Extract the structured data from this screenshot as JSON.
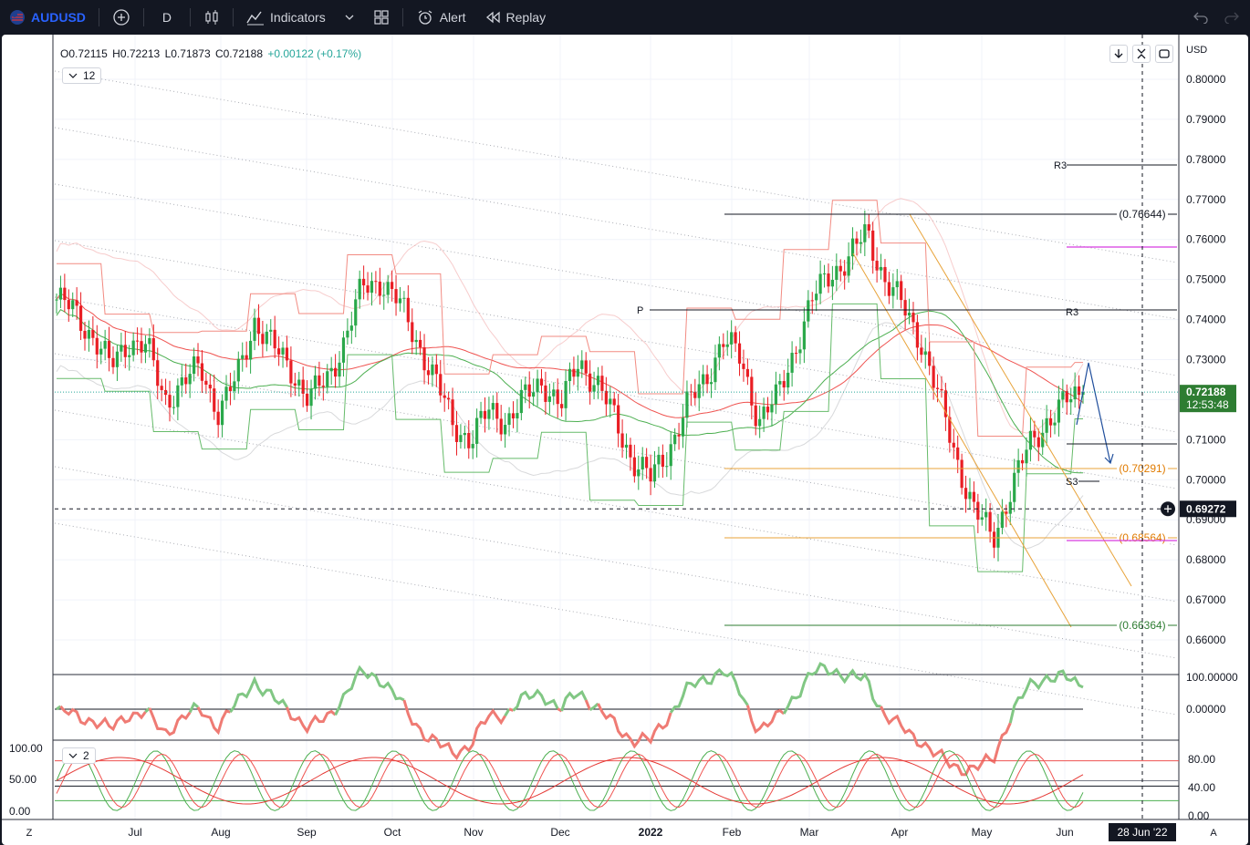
{
  "toolbar": {
    "symbol": "AUDUSD",
    "interval": "D",
    "indicators_label": "Indicators",
    "alert_label": "Alert",
    "replay_label": "Replay"
  },
  "legend": {
    "open": "O0.72115",
    "high": "H0.72213",
    "low": "L0.71873",
    "close": "C0.72188",
    "change": "+0.00122 (+0.17%)",
    "pane1_count": "12",
    "pane3_count": "2"
  },
  "price_axis": {
    "currency": "USD",
    "ticks": [
      "0.80000",
      "0.79000",
      "0.78000",
      "0.77000",
      "0.76000",
      "0.75000",
      "0.74000",
      "0.73000",
      "0.72000",
      "0.71000",
      "0.70000",
      "0.69000",
      "0.68000",
      "0.67000",
      "0.66000"
    ],
    "current_price": "0.72188",
    "countdown": "12:53:48",
    "crosshair_price": "0.69272"
  },
  "annotations": {
    "r3_top": "R3",
    "r3_mid": "R3",
    "pivot": "P",
    "s3": "S3",
    "fib_high": "(0.76644)",
    "fib_mid": "(0.70291)",
    "fib_low": "(0.68564)",
    "fib_bottom": "(0.66364)"
  },
  "pane2_axis": [
    "100.00000",
    "0.00000"
  ],
  "pane3_axis_left": [
    "100.00",
    "50.00",
    "0.00"
  ],
  "pane3_axis_right": [
    "80.00",
    "40.00",
    "0.00"
  ],
  "time_axis": [
    "Jul",
    "Aug",
    "Sep",
    "Oct",
    "Nov",
    "Dec",
    "2022",
    "Feb",
    "Mar",
    "Apr",
    "May",
    "Jun"
  ],
  "crosshair_date": "28 Jun '22",
  "bottom_left_btn": "Z",
  "bottom_right_btn": "A",
  "colors": {
    "up": "#26a69a",
    "up_candle": "#2aa84a",
    "down": "#e91e24",
    "accent": "#2962ff",
    "fib_orange": "#e8a33a",
    "magenta": "#d63ae0"
  },
  "chart_data": {
    "type": "candlestick",
    "symbol": "AUDUSD",
    "interval": "D",
    "ylim": [
      0.655,
      0.805
    ],
    "x": [
      "Jul",
      "Aug",
      "Sep",
      "Oct",
      "Nov",
      "Dec",
      "2022",
      "Feb",
      "Mar",
      "Apr",
      "May",
      "Jun"
    ],
    "close_path": [
      0.745,
      0.742,
      0.736,
      0.728,
      0.735,
      0.733,
      0.72,
      0.724,
      0.728,
      0.717,
      0.725,
      0.74,
      0.733,
      0.728,
      0.72,
      0.725,
      0.735,
      0.748,
      0.75,
      0.744,
      0.735,
      0.725,
      0.714,
      0.71,
      0.717,
      0.715,
      0.72,
      0.725,
      0.718,
      0.73,
      0.724,
      0.715,
      0.705,
      0.7,
      0.708,
      0.718,
      0.725,
      0.735,
      0.73,
      0.715,
      0.72,
      0.733,
      0.745,
      0.752,
      0.755,
      0.762,
      0.75,
      0.743,
      0.735,
      0.72,
      0.705,
      0.692,
      0.685,
      0.698,
      0.708,
      0.715,
      0.719,
      0.72188
    ],
    "last": 0.72188,
    "levels": {
      "R3": 0.778,
      "P": 0.742,
      "S3": 0.6995,
      "fib": [
        0.76644,
        0.70291,
        0.68564,
        0.66364
      ]
    }
  }
}
